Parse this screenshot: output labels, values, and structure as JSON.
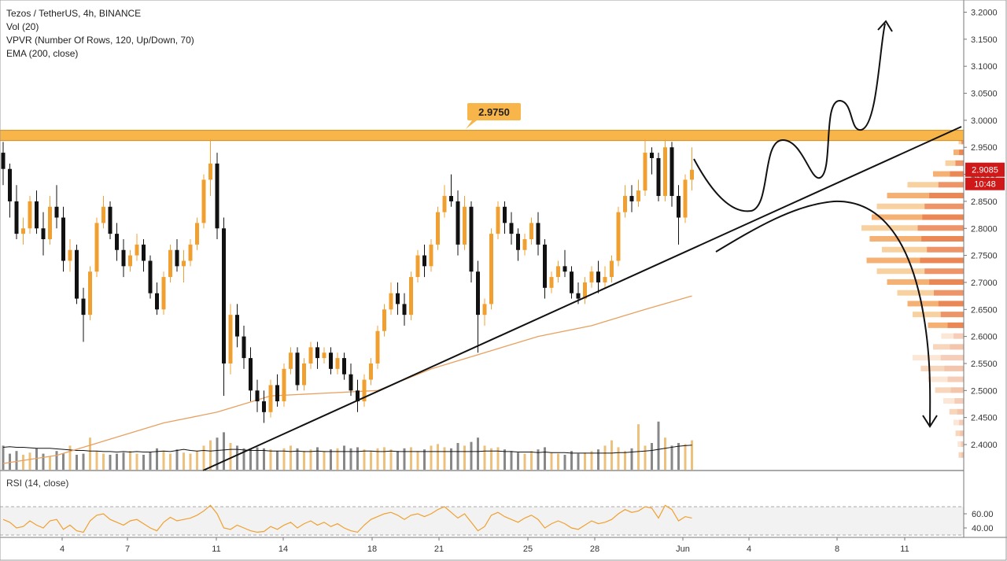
{
  "legend": {
    "title": "Tezos / TetherUS, 4h, BINANCE",
    "vol": "Vol (20)",
    "vpvr": "VPVR (Number Of Rows, 120, Up/Down, 70)",
    "ema": "EMA (200, close)"
  },
  "rsi_label": "RSI (14, close)",
  "resistance_label": "2.9750",
  "last_price_label": "2.9085",
  "countdown_label": "10:48",
  "colors": {
    "up": "#f0a030",
    "down": "#111111",
    "zone": "#f7b54a",
    "ema": "#e8a060",
    "rsi": "#f0a030",
    "price_badge": "#d01818"
  },
  "chart_data": {
    "type": "candlestick",
    "symbol": "Tezos / TetherUS",
    "timeframe": "4h",
    "exchange": "BINANCE",
    "price_axis": {
      "range": [
        2.36,
        3.215
      ],
      "ticks": [
        "3.2000",
        "3.1500",
        "3.1000",
        "3.0500",
        "3.0000",
        "2.9500",
        "2.9000",
        "2.8500",
        "2.8000",
        "2.7500",
        "2.7000",
        "2.6500",
        "2.6000",
        "2.5500",
        "2.5000",
        "2.4500",
        "2.4000"
      ]
    },
    "rsi_axis": {
      "ticks": [
        "60.00",
        "40.00"
      ],
      "upper_band": 70,
      "lower_band": 30
    },
    "x_axis": {
      "ticks": [
        "4",
        "7",
        "11",
        "14",
        "18",
        "21",
        "25",
        "28",
        "Jun",
        "4",
        "8",
        "11"
      ]
    },
    "resistance": 2.975,
    "last_price": 2.9085,
    "candles": [
      [
        2.94,
        2.96,
        2.88,
        2.91
      ],
      [
        2.91,
        2.92,
        2.82,
        2.85
      ],
      [
        2.85,
        2.88,
        2.78,
        2.79
      ],
      [
        2.79,
        2.82,
        2.77,
        2.8
      ],
      [
        2.8,
        2.86,
        2.79,
        2.85
      ],
      [
        2.85,
        2.87,
        2.79,
        2.8
      ],
      [
        2.8,
        2.83,
        2.75,
        2.78
      ],
      [
        2.78,
        2.86,
        2.77,
        2.84
      ],
      [
        2.84,
        2.88,
        2.8,
        2.82
      ],
      [
        2.82,
        2.84,
        2.72,
        2.74
      ],
      [
        2.74,
        2.78,
        2.72,
        2.76
      ],
      [
        2.76,
        2.77,
        2.66,
        2.67
      ],
      [
        2.67,
        2.69,
        2.59,
        2.64
      ],
      [
        2.64,
        2.73,
        2.63,
        2.72
      ],
      [
        2.72,
        2.82,
        2.71,
        2.81
      ],
      [
        2.81,
        2.86,
        2.8,
        2.84
      ],
      [
        2.84,
        2.85,
        2.78,
        2.79
      ],
      [
        2.79,
        2.81,
        2.74,
        2.76
      ],
      [
        2.76,
        2.78,
        2.71,
        2.73
      ],
      [
        2.73,
        2.76,
        2.72,
        2.75
      ],
      [
        2.75,
        2.79,
        2.74,
        2.77
      ],
      [
        2.77,
        2.78,
        2.72,
        2.74
      ],
      [
        2.74,
        2.75,
        2.67,
        2.68
      ],
      [
        2.68,
        2.7,
        2.64,
        2.65
      ],
      [
        2.65,
        2.72,
        2.64,
        2.71
      ],
      [
        2.71,
        2.77,
        2.7,
        2.76
      ],
      [
        2.76,
        2.78,
        2.72,
        2.73
      ],
      [
        2.73,
        2.76,
        2.7,
        2.74
      ],
      [
        2.74,
        2.78,
        2.73,
        2.77
      ],
      [
        2.77,
        2.82,
        2.76,
        2.81
      ],
      [
        2.81,
        2.9,
        2.8,
        2.89
      ],
      [
        2.89,
        2.965,
        2.86,
        2.92
      ],
      [
        2.92,
        2.94,
        2.78,
        2.8
      ],
      [
        2.8,
        2.82,
        2.49,
        2.55
      ],
      [
        2.55,
        2.66,
        2.53,
        2.64
      ],
      [
        2.64,
        2.66,
        2.58,
        2.6
      ],
      [
        2.6,
        2.62,
        2.54,
        2.56
      ],
      [
        2.56,
        2.58,
        2.48,
        2.5
      ],
      [
        2.5,
        2.52,
        2.46,
        2.48
      ],
      [
        2.48,
        2.5,
        2.44,
        2.46
      ],
      [
        2.46,
        2.52,
        2.45,
        2.51
      ],
      [
        2.51,
        2.53,
        2.47,
        2.48
      ],
      [
        2.48,
        2.55,
        2.47,
        2.54
      ],
      [
        2.54,
        2.58,
        2.53,
        2.57
      ],
      [
        2.57,
        2.58,
        2.5,
        2.51
      ],
      [
        2.51,
        2.56,
        2.5,
        2.55
      ],
      [
        2.55,
        2.59,
        2.54,
        2.58
      ],
      [
        2.58,
        2.59,
        2.54,
        2.56
      ],
      [
        2.56,
        2.58,
        2.55,
        2.57
      ],
      [
        2.57,
        2.58,
        2.53,
        2.54
      ],
      [
        2.54,
        2.57,
        2.53,
        2.56
      ],
      [
        2.56,
        2.57,
        2.52,
        2.53
      ],
      [
        2.53,
        2.55,
        2.49,
        2.5
      ],
      [
        2.5,
        2.52,
        2.46,
        2.48
      ],
      [
        2.48,
        2.53,
        2.47,
        2.52
      ],
      [
        2.52,
        2.56,
        2.51,
        2.55
      ],
      [
        2.55,
        2.62,
        2.54,
        2.61
      ],
      [
        2.61,
        2.66,
        2.6,
        2.65
      ],
      [
        2.65,
        2.7,
        2.64,
        2.68
      ],
      [
        2.68,
        2.7,
        2.64,
        2.66
      ],
      [
        2.66,
        2.68,
        2.62,
        2.64
      ],
      [
        2.64,
        2.72,
        2.63,
        2.71
      ],
      [
        2.71,
        2.76,
        2.7,
        2.75
      ],
      [
        2.75,
        2.77,
        2.71,
        2.73
      ],
      [
        2.73,
        2.78,
        2.72,
        2.77
      ],
      [
        2.77,
        2.84,
        2.76,
        2.83
      ],
      [
        2.83,
        2.88,
        2.82,
        2.86
      ],
      [
        2.86,
        2.9,
        2.84,
        2.85
      ],
      [
        2.85,
        2.87,
        2.75,
        2.77
      ],
      [
        2.77,
        2.86,
        2.76,
        2.84
      ],
      [
        2.84,
        2.85,
        2.7,
        2.72
      ],
      [
        2.72,
        2.74,
        2.57,
        2.64
      ],
      [
        2.64,
        2.67,
        2.62,
        2.66
      ],
      [
        2.66,
        2.8,
        2.65,
        2.79
      ],
      [
        2.79,
        2.85,
        2.78,
        2.84
      ],
      [
        2.84,
        2.85,
        2.79,
        2.81
      ],
      [
        2.81,
        2.83,
        2.77,
        2.79
      ],
      [
        2.79,
        2.8,
        2.74,
        2.76
      ],
      [
        2.76,
        2.79,
        2.75,
        2.78
      ],
      [
        2.78,
        2.82,
        2.77,
        2.81
      ],
      [
        2.81,
        2.83,
        2.75,
        2.77
      ],
      [
        2.77,
        2.78,
        2.67,
        2.69
      ],
      [
        2.69,
        2.72,
        2.68,
        2.71
      ],
      [
        2.71,
        2.74,
        2.7,
        2.73
      ],
      [
        2.73,
        2.76,
        2.71,
        2.72
      ],
      [
        2.72,
        2.73,
        2.67,
        2.68
      ],
      [
        2.68,
        2.7,
        2.66,
        2.67
      ],
      [
        2.67,
        2.71,
        2.66,
        2.7
      ],
      [
        2.7,
        2.73,
        2.69,
        2.72
      ],
      [
        2.72,
        2.74,
        2.68,
        2.7
      ],
      [
        2.7,
        2.73,
        2.69,
        2.71
      ],
      [
        2.71,
        2.75,
        2.7,
        2.74
      ],
      [
        2.74,
        2.84,
        2.73,
        2.83
      ],
      [
        2.83,
        2.88,
        2.82,
        2.86
      ],
      [
        2.86,
        2.88,
        2.83,
        2.85
      ],
      [
        2.85,
        2.89,
        2.84,
        2.87
      ],
      [
        2.87,
        2.965,
        2.86,
        2.94
      ],
      [
        2.94,
        2.95,
        2.9,
        2.93
      ],
      [
        2.93,
        2.94,
        2.85,
        2.86
      ],
      [
        2.86,
        2.965,
        2.85,
        2.95
      ],
      [
        2.95,
        2.96,
        2.84,
        2.86
      ],
      [
        2.86,
        2.88,
        2.77,
        2.82
      ],
      [
        2.82,
        2.9,
        2.81,
        2.89
      ],
      [
        2.89,
        2.95,
        2.87,
        2.9085
      ]
    ],
    "volume": [
      0.45,
      0.3,
      0.35,
      0.28,
      0.32,
      0.4,
      0.3,
      0.25,
      0.35,
      0.3,
      0.45,
      0.28,
      0.3,
      0.6,
      0.35,
      0.3,
      0.28,
      0.3,
      0.32,
      0.35,
      0.3,
      0.28,
      0.33,
      0.4,
      0.35,
      0.3,
      0.38,
      0.32,
      0.3,
      0.35,
      0.45,
      0.55,
      0.6,
      0.7,
      0.5,
      0.45,
      0.4,
      0.38,
      0.42,
      0.4,
      0.38,
      0.35,
      0.4,
      0.45,
      0.4,
      0.35,
      0.38,
      0.42,
      0.35,
      0.38,
      0.4,
      0.45,
      0.4,
      0.42,
      0.38,
      0.35,
      0.4,
      0.42,
      0.38,
      0.35,
      0.4,
      0.42,
      0.35,
      0.38,
      0.45,
      0.48,
      0.42,
      0.4,
      0.5,
      0.45,
      0.52,
      0.6,
      0.45,
      0.4,
      0.42,
      0.38,
      0.35,
      0.32,
      0.3,
      0.35,
      0.38,
      0.42,
      0.32,
      0.3,
      0.28,
      0.35,
      0.3,
      0.32,
      0.35,
      0.38,
      0.45,
      0.55,
      0.42,
      0.35,
      0.4,
      0.85,
      0.45,
      0.5,
      0.9,
      0.6,
      0.45,
      0.5,
      0.48,
      0.55
    ],
    "vol_ma": [
      0.42,
      0.43,
      0.42,
      0.42,
      0.41,
      0.4,
      0.4,
      0.4,
      0.39,
      0.38,
      0.37,
      0.36,
      0.36,
      0.35,
      0.35,
      0.34,
      0.34,
      0.33,
      0.34,
      0.33,
      0.34,
      0.33,
      0.33,
      0.34,
      0.35,
      0.34,
      0.36,
      0.38,
      0.36,
      0.35,
      0.36,
      0.35,
      0.36,
      0.37,
      0.38,
      0.38,
      0.37,
      0.36,
      0.36,
      0.36,
      0.35,
      0.35,
      0.35,
      0.34,
      0.35,
      0.34,
      0.34,
      0.35,
      0.34,
      0.34,
      0.34,
      0.34,
      0.34,
      0.34,
      0.35,
      0.35,
      0.34,
      0.34,
      0.35,
      0.34,
      0.34,
      0.34,
      0.34,
      0.34,
      0.34,
      0.34,
      0.34,
      0.34,
      0.34,
      0.34,
      0.34,
      0.34,
      0.35,
      0.35,
      0.35,
      0.34,
      0.34,
      0.33,
      0.33,
      0.33,
      0.32,
      0.33,
      0.32,
      0.32,
      0.32,
      0.31,
      0.31,
      0.31,
      0.31,
      0.31,
      0.31,
      0.31,
      0.32,
      0.32,
      0.33,
      0.34,
      0.35,
      0.36,
      0.38,
      0.4,
      0.42,
      0.44,
      0.45,
      0.46
    ],
    "ema200": [
      [
        0,
        2.365
      ],
      [
        8,
        2.38
      ],
      [
        16,
        2.41
      ],
      [
        24,
        2.44
      ],
      [
        32,
        2.46
      ],
      [
        40,
        2.49
      ],
      [
        48,
        2.495
      ],
      [
        56,
        2.5
      ],
      [
        64,
        2.54
      ],
      [
        72,
        2.57
      ],
      [
        80,
        2.6
      ],
      [
        88,
        2.62
      ],
      [
        96,
        2.65
      ],
      [
        103,
        2.675
      ]
    ],
    "rsi": [
      52,
      48,
      40,
      42,
      50,
      44,
      40,
      50,
      52,
      38,
      44,
      36,
      34,
      50,
      58,
      60,
      52,
      48,
      44,
      50,
      52,
      46,
      40,
      36,
      48,
      55,
      50,
      52,
      54,
      58,
      64,
      72,
      60,
      40,
      38,
      44,
      40,
      36,
      34,
      35,
      42,
      38,
      44,
      48,
      40,
      46,
      50,
      44,
      48,
      42,
      46,
      40,
      36,
      34,
      44,
      52,
      56,
      60,
      62,
      58,
      52,
      58,
      60,
      56,
      60,
      66,
      70,
      62,
      54,
      60,
      48,
      36,
      42,
      58,
      62,
      56,
      52,
      48,
      54,
      58,
      52,
      40,
      46,
      50,
      46,
      40,
      38,
      44,
      50,
      46,
      48,
      52,
      60,
      66,
      62,
      64,
      70,
      68,
      54,
      72,
      66,
      50,
      56,
      54
    ],
    "vpvr_levels": [
      [
        2.96,
        0.05
      ],
      [
        2.94,
        0.1
      ],
      [
        2.92,
        0.18
      ],
      [
        2.9,
        0.3
      ],
      [
        2.88,
        0.55
      ],
      [
        2.86,
        0.75
      ],
      [
        2.84,
        0.85
      ],
      [
        2.82,
        0.9
      ],
      [
        2.8,
        1.0
      ],
      [
        2.78,
        0.92
      ],
      [
        2.76,
        0.8
      ],
      [
        2.74,
        0.95
      ],
      [
        2.72,
        0.85
      ],
      [
        2.7,
        0.75
      ],
      [
        2.68,
        0.65
      ],
      [
        2.66,
        0.55
      ],
      [
        2.64,
        0.5
      ],
      [
        2.62,
        0.35
      ],
      [
        2.6,
        0.22
      ],
      [
        2.58,
        0.3
      ],
      [
        2.56,
        0.5
      ],
      [
        2.54,
        0.42
      ],
      [
        2.52,
        0.35
      ],
      [
        2.5,
        0.28
      ],
      [
        2.48,
        0.2
      ],
      [
        2.46,
        0.14
      ],
      [
        2.44,
        0.1
      ],
      [
        2.42,
        0.08
      ],
      [
        2.4,
        0.06
      ],
      [
        2.38,
        0.05
      ]
    ]
  }
}
